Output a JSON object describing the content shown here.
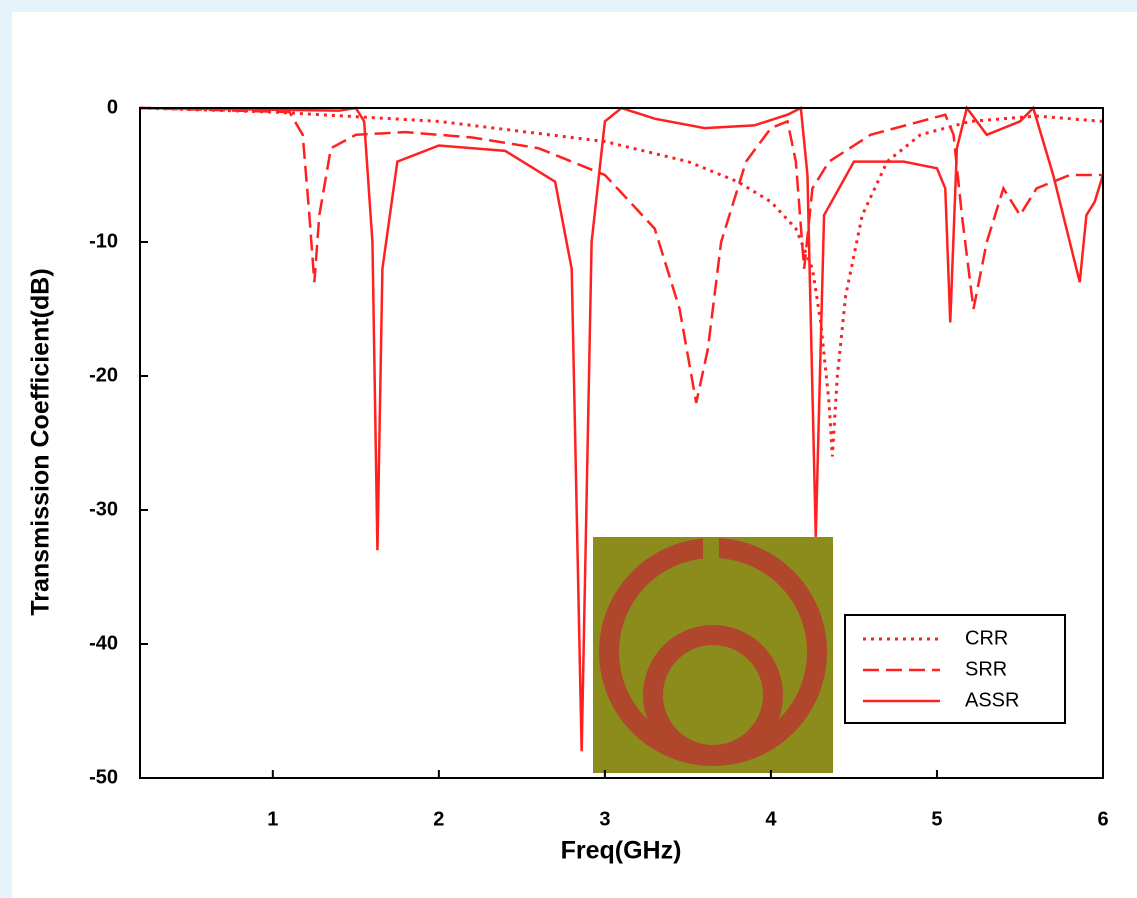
{
  "chart_data": {
    "type": "line",
    "x_label": "Freq(GHz)",
    "y_label": "Transmission Coefficient(dB)",
    "xlim": [
      0.2,
      6
    ],
    "ylim": [
      -50,
      0
    ],
    "xticks": [
      1,
      2,
      3,
      4,
      5,
      6
    ],
    "yticks": [
      0,
      -10,
      -20,
      -30,
      -40,
      -50
    ],
    "legend": "lower right",
    "series": [
      {
        "name": "CRR",
        "color": "#ff2020",
        "dash": "dotted",
        "x": [
          0.2,
          1.0,
          2.0,
          3.0,
          3.5,
          3.8,
          4.0,
          4.15,
          4.25,
          4.3,
          4.35,
          4.37,
          4.4,
          4.45,
          4.55,
          4.7,
          4.9,
          5.2,
          5.6,
          6.0
        ],
        "values": [
          0,
          -0.3,
          -1,
          -2.5,
          -4,
          -5.5,
          -7,
          -9,
          -12,
          -16,
          -22,
          -26,
          -20,
          -14,
          -8,
          -4,
          -2,
          -1,
          -0.6,
          -1
        ]
      },
      {
        "name": "SRR",
        "color": "#ff2020",
        "dash": "dashed",
        "x": [
          0.2,
          1.1,
          1.18,
          1.22,
          1.25,
          1.28,
          1.35,
          1.5,
          1.8,
          2.2,
          2.6,
          3.0,
          3.3,
          3.45,
          3.55,
          3.62,
          3.7,
          3.85,
          4.0,
          4.1,
          4.15,
          4.2,
          4.25,
          4.35,
          4.6,
          4.9,
          5.05,
          5.1,
          5.15,
          5.22,
          5.3,
          5.4,
          5.5,
          5.6,
          5.8,
          6.0
        ],
        "values": [
          0,
          -0.3,
          -2,
          -8,
          -13,
          -8,
          -3,
          -2,
          -1.8,
          -2.2,
          -3,
          -5,
          -9,
          -15,
          -22,
          -18,
          -10,
          -4,
          -1.5,
          -1,
          -4,
          -12,
          -6,
          -4,
          -2,
          -1,
          -0.5,
          -2,
          -8,
          -15,
          -10,
          -6,
          -8,
          -6,
          -5,
          -5
        ]
      },
      {
        "name": "ASSR",
        "color": "#ff2020",
        "dash": "solid",
        "x": [
          0.2,
          1.4,
          1.5,
          1.55,
          1.6,
          1.63,
          1.66,
          1.75,
          2.0,
          2.4,
          2.7,
          2.8,
          2.86,
          2.92,
          3.0,
          3.1,
          3.3,
          3.6,
          3.9,
          4.1,
          4.18,
          4.22,
          4.27,
          4.32,
          4.5,
          4.8,
          5.0,
          5.05,
          5.08,
          5.12,
          5.18,
          5.3,
          5.5,
          5.58,
          5.7,
          5.82,
          5.86,
          5.9,
          5.95,
          6.0
        ],
        "values": [
          0,
          -0.2,
          0,
          -1,
          -10,
          -33,
          -12,
          -4,
          -2.8,
          -3.2,
          -5.5,
          -12,
          -48,
          -10,
          -1,
          0,
          -0.8,
          -1.5,
          -1.3,
          -0.5,
          0,
          -5,
          -32,
          -8,
          -4,
          -4,
          -4.5,
          -6,
          -16,
          -3,
          0,
          -2,
          -1,
          0,
          -5,
          -11,
          -13,
          -8,
          -7,
          -5
        ]
      }
    ]
  }
}
